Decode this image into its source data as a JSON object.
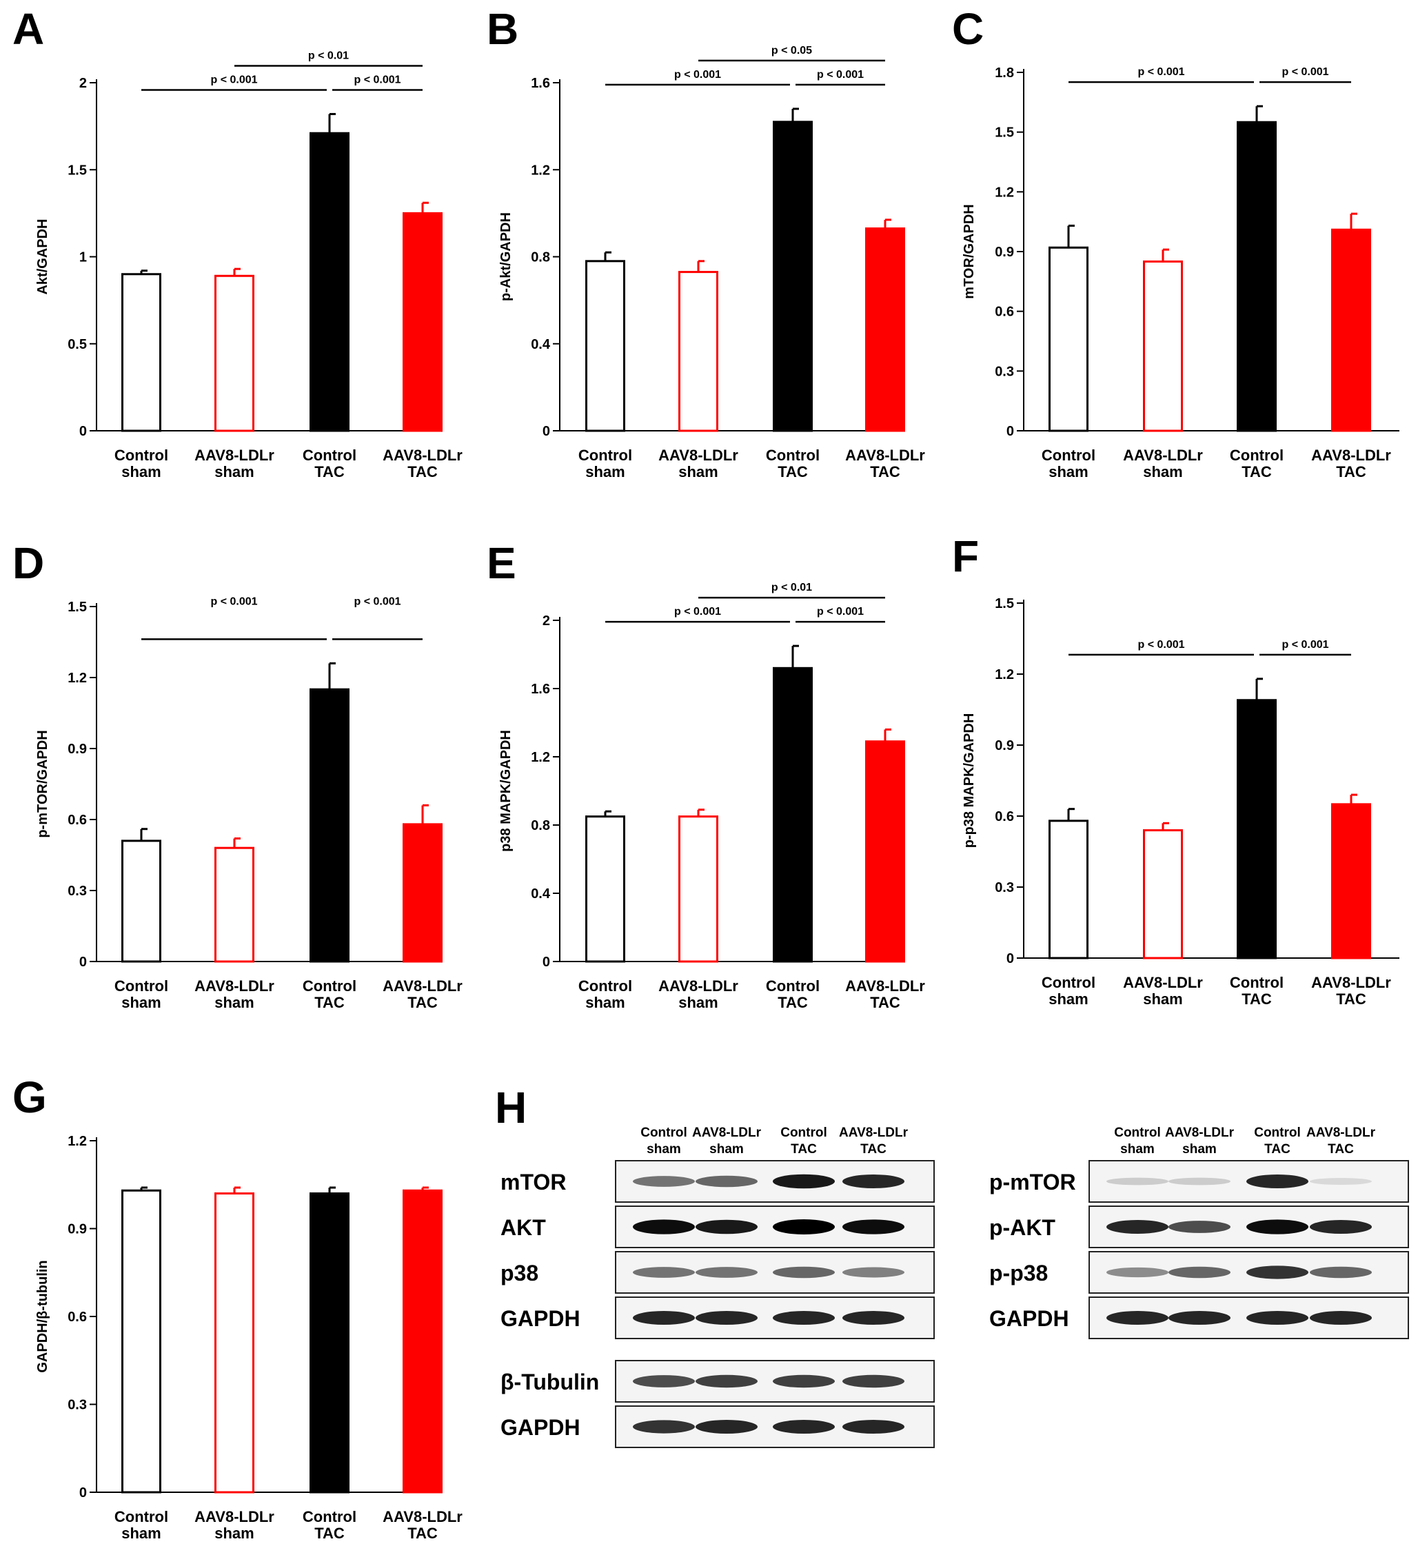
{
  "panels": {
    "A": "A",
    "B": "B",
    "C": "C",
    "D": "D",
    "E": "E",
    "F": "F",
    "G": "G",
    "H": "H"
  },
  "colors": {
    "control": "#000000",
    "aav8": "#ff0000",
    "fill_white": "#ffffff"
  },
  "chart_data": [
    {
      "id": "A",
      "type": "bar",
      "ylabel": "Akt/GAPDH",
      "ylim": [
        0,
        2
      ],
      "yticks": [
        0,
        0.5,
        1,
        1.5,
        2
      ],
      "tick_labels": [
        "0",
        "0.5",
        "1",
        "1.5",
        "2"
      ],
      "categories": [
        [
          "Control",
          "sham"
        ],
        [
          "AAV8-LDLr",
          "sham"
        ],
        [
          "Control",
          "TAC"
        ],
        [
          "AAV8-LDLr",
          "TAC"
        ]
      ],
      "values": [
        0.9,
        0.89,
        1.71,
        1.25
      ],
      "errors": [
        0.02,
        0.04,
        0.11,
        0.06
      ],
      "fills": [
        "white",
        "white",
        "black",
        "red"
      ],
      "strokes": [
        "black",
        "red",
        "black",
        "red"
      ],
      "comparisons": [
        {
          "from": 0,
          "to": 2,
          "label": "p < 0.001",
          "level": 0
        },
        {
          "from": 2,
          "to": 3,
          "label": "p < 0.001",
          "level": 0
        },
        {
          "from": 1,
          "to": 3,
          "label": "p < 0.01",
          "level": 1
        }
      ]
    },
    {
      "id": "B",
      "type": "bar",
      "ylabel": "p-Akt/GAPDH",
      "ylim": [
        0,
        1.6
      ],
      "yticks": [
        0,
        0.4,
        0.8,
        1.2,
        1.6
      ],
      "tick_labels": [
        "0",
        "0.4",
        "0.8",
        "1.2",
        "1.6"
      ],
      "categories": [
        [
          "Control",
          "sham"
        ],
        [
          "AAV8-LDLr",
          "sham"
        ],
        [
          "Control",
          "TAC"
        ],
        [
          "AAV8-LDLr",
          "TAC"
        ]
      ],
      "values": [
        0.78,
        0.73,
        1.42,
        0.93
      ],
      "errors": [
        0.04,
        0.05,
        0.06,
        0.04
      ],
      "fills": [
        "white",
        "white",
        "black",
        "red"
      ],
      "strokes": [
        "black",
        "red",
        "black",
        "red"
      ],
      "comparisons": [
        {
          "from": 0,
          "to": 2,
          "label": "p < 0.001",
          "level": 0
        },
        {
          "from": 2,
          "to": 3,
          "label": "p < 0.001",
          "level": 0
        },
        {
          "from": 1,
          "to": 3,
          "label": "p < 0.05",
          "level": 1
        }
      ]
    },
    {
      "id": "C",
      "type": "bar",
      "ylabel": "mTOR/GAPDH",
      "ylim": [
        0,
        1.8
      ],
      "yticks": [
        0,
        0.3,
        0.6,
        0.9,
        1.2,
        1.5,
        1.8
      ],
      "tick_labels": [
        "0",
        "0.3",
        "0.6",
        "0.9",
        "1.2",
        "1.5",
        "1.8"
      ],
      "categories": [
        [
          "Control",
          "sham"
        ],
        [
          "AAV8-LDLr",
          "sham"
        ],
        [
          "Control",
          "TAC"
        ],
        [
          "AAV8-LDLr",
          "TAC"
        ]
      ],
      "values": [
        0.92,
        0.85,
        1.55,
        1.01
      ],
      "errors": [
        0.11,
        0.06,
        0.08,
        0.08
      ],
      "fills": [
        "white",
        "white",
        "black",
        "red"
      ],
      "strokes": [
        "black",
        "red",
        "black",
        "red"
      ],
      "comparisons": [
        {
          "from": 0,
          "to": 2,
          "label": "p < 0.001",
          "level": 0
        },
        {
          "from": 2,
          "to": 3,
          "label": "p < 0.001",
          "level": 0
        }
      ]
    },
    {
      "id": "D",
      "type": "bar",
      "ylabel": "p-mTOR/GAPDH",
      "ylim": [
        0,
        1.5
      ],
      "yticks": [
        0,
        0.3,
        0.6,
        0.9,
        1.2,
        1.5
      ],
      "tick_labels": [
        "0",
        "0.3",
        "0.6",
        "0.9",
        "1.2",
        "1.5"
      ],
      "categories": [
        [
          "Control",
          "sham"
        ],
        [
          "AAV8-LDLr",
          "sham"
        ],
        [
          "Control",
          "TAC"
        ],
        [
          "AAV8-LDLr",
          "TAC"
        ]
      ],
      "values": [
        0.51,
        0.48,
        1.15,
        0.58
      ],
      "errors": [
        0.05,
        0.04,
        0.11,
        0.08
      ],
      "fills": [
        "white",
        "white",
        "black",
        "red"
      ],
      "strokes": [
        "black",
        "red",
        "black",
        "red"
      ],
      "comparisons": [
        {
          "from": 0,
          "to": 2,
          "label": "p < 0.001",
          "level": 0,
          "label_high": true
        },
        {
          "from": 2,
          "to": 3,
          "label": "p < 0.001",
          "level": 0,
          "label_high": true
        }
      ]
    },
    {
      "id": "E",
      "type": "bar",
      "ylabel": "p38 MAPK/GAPDH",
      "ylim": [
        0,
        2
      ],
      "yticks": [
        0,
        0.4,
        0.8,
        1.2,
        1.6,
        2
      ],
      "tick_labels": [
        "0",
        "0.4",
        "0.8",
        "1.2",
        "1.6",
        "2"
      ],
      "categories": [
        [
          "Control",
          "sham"
        ],
        [
          "AAV8-LDLr",
          "sham"
        ],
        [
          "Control",
          "TAC"
        ],
        [
          "AAV8-LDLr",
          "TAC"
        ]
      ],
      "values": [
        0.85,
        0.85,
        1.72,
        1.29
      ],
      "errors": [
        0.03,
        0.04,
        0.13,
        0.07
      ],
      "fills": [
        "white",
        "white",
        "black",
        "red"
      ],
      "strokes": [
        "black",
        "red",
        "black",
        "red"
      ],
      "comparisons": [
        {
          "from": 0,
          "to": 2,
          "label": "p < 0.001",
          "level": 0
        },
        {
          "from": 2,
          "to": 3,
          "label": "p < 0.001",
          "level": 0
        },
        {
          "from": 1,
          "to": 3,
          "label": "p < 0.01",
          "level": 1
        }
      ]
    },
    {
      "id": "F",
      "type": "bar",
      "ylabel": "p-p38 MAPK/GAPDH",
      "ylim": [
        0,
        1.5
      ],
      "yticks": [
        0,
        0.3,
        0.6,
        0.9,
        1.2,
        1.5
      ],
      "tick_labels": [
        "0",
        "0.3",
        "0.6",
        "0.9",
        "1.2",
        "1.5"
      ],
      "categories": [
        [
          "Control",
          "sham"
        ],
        [
          "AAV8-LDLr",
          "sham"
        ],
        [
          "Control",
          "TAC"
        ],
        [
          "AAV8-LDLr",
          "TAC"
        ]
      ],
      "values": [
        0.58,
        0.54,
        1.09,
        0.65
      ],
      "errors": [
        0.05,
        0.03,
        0.09,
        0.04
      ],
      "fills": [
        "white",
        "white",
        "black",
        "red"
      ],
      "strokes": [
        "black",
        "red",
        "black",
        "red"
      ],
      "comparisons": [
        {
          "from": 0,
          "to": 2,
          "label": "p < 0.001",
          "level": 0
        },
        {
          "from": 2,
          "to": 3,
          "label": "p < 0.001",
          "level": 0
        }
      ]
    },
    {
      "id": "G",
      "type": "bar",
      "ylabel": "GAPDH/β-tubulin",
      "ylim": [
        0,
        1.2
      ],
      "yticks": [
        0,
        0.3,
        0.6,
        0.9,
        1.2
      ],
      "tick_labels": [
        "0",
        "0.3",
        "0.6",
        "0.9",
        "1.2"
      ],
      "categories": [
        [
          "Control",
          "sham"
        ],
        [
          "AAV8-LDLr",
          "sham"
        ],
        [
          "Control",
          "TAC"
        ],
        [
          "AAV8-LDLr",
          "TAC"
        ]
      ],
      "values": [
        1.03,
        1.02,
        1.02,
        1.03
      ],
      "errors": [
        0.01,
        0.02,
        0.02,
        0.01
      ],
      "fills": [
        "white",
        "white",
        "black",
        "red"
      ],
      "strokes": [
        "black",
        "red",
        "black",
        "red"
      ],
      "comparisons": []
    }
  ],
  "blots": {
    "lane_labels": [
      [
        "Control",
        "sham"
      ],
      [
        "AAV8-LDLr",
        "sham"
      ],
      [
        "Control",
        "TAC"
      ],
      [
        "AAV8-LDLr",
        "TAC"
      ]
    ],
    "left_group": [
      {
        "label": "mTOR",
        "intensity": [
          0.55,
          0.6,
          0.9,
          0.85
        ]
      },
      {
        "label": "AKT",
        "intensity": [
          0.95,
          0.9,
          1.0,
          0.95
        ]
      },
      {
        "label": "p38",
        "intensity": [
          0.55,
          0.55,
          0.6,
          0.5
        ]
      },
      {
        "label": "GAPDH",
        "intensity": [
          0.85,
          0.85,
          0.85,
          0.85
        ]
      }
    ],
    "left_extra": [
      {
        "label": "β-Tubulin",
        "intensity": [
          0.7,
          0.75,
          0.75,
          0.75
        ]
      },
      {
        "label": "GAPDH",
        "intensity": [
          0.8,
          0.85,
          0.85,
          0.85
        ]
      }
    ],
    "right_group": [
      {
        "label": "p-mTOR",
        "intensity": [
          0.2,
          0.2,
          0.85,
          0.15
        ]
      },
      {
        "label": "p-AKT",
        "intensity": [
          0.85,
          0.7,
          0.95,
          0.85
        ]
      },
      {
        "label": "p-p38",
        "intensity": [
          0.45,
          0.6,
          0.8,
          0.6
        ]
      },
      {
        "label": "GAPDH",
        "intensity": [
          0.85,
          0.85,
          0.85,
          0.85
        ]
      }
    ]
  }
}
